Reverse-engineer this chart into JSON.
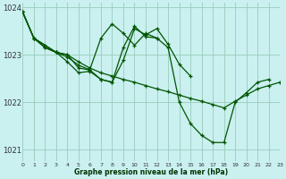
{
  "background_color": "#caf0f0",
  "grid_color": "#99ccbb",
  "line_color": "#005500",
  "marker_color": "#005500",
  "title": "Graphe pression niveau de la mer (hPa)",
  "xlim": [
    0,
    23
  ],
  "ylim": [
    1020.75,
    1024.1
  ],
  "yticks": [
    1021,
    1022,
    1023,
    1024
  ],
  "xticks": [
    0,
    1,
    2,
    3,
    4,
    5,
    6,
    7,
    8,
    9,
    10,
    11,
    12,
    13,
    14,
    15,
    16,
    17,
    18,
    19,
    20,
    21,
    22,
    23
  ],
  "series": [
    {
      "x": [
        0,
        1,
        2,
        3,
        4,
        5,
        6,
        7,
        8,
        9,
        10,
        11,
        12,
        13,
        14,
        15,
        16,
        17,
        18,
        19,
        20,
        21,
        22,
        23
      ],
      "y": [
        1023.9,
        1023.35,
        1023.2,
        1023.05,
        1023.0,
        1022.85,
        1022.72,
        1022.62,
        1022.55,
        1022.48,
        1022.42,
        1022.35,
        1022.28,
        1022.22,
        1022.15,
        1022.08,
        1022.02,
        1021.95,
        1021.88,
        1022.02,
        1022.15,
        1022.28,
        1022.35,
        1022.42
      ]
    },
    {
      "x": [
        0,
        1,
        2,
        3,
        4,
        5,
        6,
        7,
        8,
        9,
        10,
        11,
        12,
        13,
        14,
        15,
        16,
        17,
        18,
        19,
        20,
        21,
        22
      ],
      "y": [
        1023.9,
        1023.35,
        1023.2,
        1023.05,
        1023.0,
        1022.72,
        1022.68,
        1023.35,
        1023.65,
        1023.45,
        1023.2,
        1023.45,
        1023.35,
        1023.15,
        1022.0,
        1021.55,
        1021.3,
        1021.15,
        1021.15,
        1022.0,
        1022.2,
        1022.42,
        1022.48
      ]
    },
    {
      "x": [
        0,
        1,
        2,
        3,
        4,
        5,
        6,
        7,
        8,
        9,
        10,
        11,
        12
      ],
      "y": [
        1023.9,
        1023.35,
        1023.15,
        1023.05,
        1022.85,
        1022.62,
        1022.65,
        1022.48,
        1022.42,
        1023.15,
        1023.6,
        1023.38,
        1023.35
      ]
    },
    {
      "x": [
        0,
        1,
        2,
        3,
        4,
        5,
        6,
        7,
        8,
        9,
        10,
        11,
        12,
        13,
        14,
        15
      ],
      "y": [
        1023.9,
        1023.35,
        1023.15,
        1023.05,
        1022.95,
        1022.78,
        1022.68,
        1022.48,
        1022.42,
        1022.88,
        1023.55,
        1023.42,
        1023.55,
        1023.22,
        1022.8,
        1022.55
      ]
    }
  ]
}
